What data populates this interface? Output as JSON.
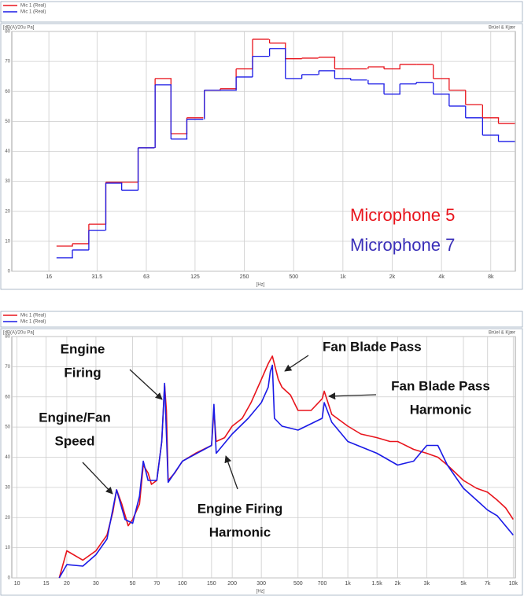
{
  "chart_data": [
    {
      "type": "step",
      "x_label": "[Hz]",
      "y_label": "[dB(A)/20u Pa]",
      "brand": "Brüel & Kjær",
      "log_x": true,
      "grid": true,
      "xlim": [
        9.5,
        11300
      ],
      "ylim": [
        0,
        80
      ],
      "xticks": [
        16,
        31.5,
        63,
        125,
        250,
        500,
        {
          "value": 1000,
          "label": "1k"
        },
        {
          "value": 2000,
          "label": "2k"
        },
        {
          "value": 4000,
          "label": "4k"
        },
        {
          "value": 8000,
          "label": "8k"
        }
      ],
      "yticks": [
        0,
        10,
        20,
        30,
        40,
        50,
        60,
        70,
        80
      ],
      "x": [
        20,
        25,
        31.5,
        40,
        50,
        63,
        80,
        100,
        125,
        160,
        200,
        250,
        315,
        400,
        500,
        630,
        800,
        1000,
        1250,
        1600,
        2000,
        2500,
        3150,
        4000,
        5000,
        6300,
        8000,
        10000
      ],
      "series": [
        {
          "name": "Mic 1 (Real)",
          "color": "#e8141c",
          "values": [
            8.4,
            9.2,
            15.7,
            29.7,
            29.7,
            41.2,
            64.3,
            45.9,
            51.2,
            60.4,
            60.9,
            67.5,
            77.4,
            76.1,
            70.9,
            71.1,
            71.4,
            67.5,
            67.5,
            68.2,
            67.5,
            69.0,
            69.0,
            64.3,
            60.4,
            55.6,
            51.2,
            49.3
          ]
        },
        {
          "name": "Mic 1 (Real)",
          "color": "#1a1ae6",
          "values": [
            4.5,
            7.1,
            13.6,
            29.4,
            27.0,
            41.2,
            62.2,
            44.1,
            50.7,
            60.4,
            60.4,
            64.8,
            71.7,
            74.3,
            64.3,
            65.6,
            66.9,
            64.3,
            63.8,
            62.5,
            59.1,
            62.5,
            63.0,
            59.1,
            55.1,
            51.2,
            45.4,
            43.3
          ]
        }
      ],
      "annotations": [
        {
          "text": "Microphone 5",
          "color": "#e8141c"
        },
        {
          "text": "Microphone 7",
          "color": "#3a2fb8"
        }
      ]
    },
    {
      "type": "line",
      "x_label": "[Hz]",
      "y_label": "[dB(A)/20u Pa]",
      "brand": "Brüel & Kjær",
      "log_x": true,
      "grid": true,
      "xlim": [
        9.3,
        10300
      ],
      "ylim": [
        0,
        80
      ],
      "xticks": [
        10,
        15,
        20,
        30,
        50,
        70,
        100,
        150,
        200,
        300,
        500,
        700,
        {
          "value": 1000,
          "label": "1k"
        },
        {
          "value": 1500,
          "label": "1.5k"
        },
        {
          "value": 2000,
          "label": "2k"
        },
        {
          "value": 3000,
          "label": "3k"
        },
        {
          "value": 5000,
          "label": "5k"
        },
        {
          "value": 7000,
          "label": "7k"
        },
        {
          "value": 10000,
          "label": "10k"
        }
      ],
      "yticks": [
        0,
        10,
        20,
        30,
        40,
        50,
        60,
        70,
        80
      ],
      "series": [
        {
          "name": "Mic 1 (Real)",
          "color": "#e8141c",
          "x": [
            18,
            20,
            25,
            30,
            35,
            38,
            40,
            43,
            47,
            50,
            55,
            58,
            62,
            65,
            70,
            75,
            78,
            80,
            82,
            90,
            100,
            120,
            150,
            155,
            160,
            180,
            200,
            230,
            260,
            300,
            330,
            350,
            380,
            400,
            450,
            500,
            600,
            700,
            720,
            800,
            1000,
            1200,
            1500,
            1800,
            2000,
            2500,
            3000,
            3500,
            4000,
            5000,
            6000,
            7000,
            8000,
            9000,
            10000
          ],
          "values": [
            0,
            9.0,
            5.9,
            9.0,
            14.2,
            21.9,
            29.2,
            24.5,
            17.3,
            19.4,
            24.5,
            37.4,
            34.8,
            31.0,
            32.3,
            45.2,
            64.0,
            55.5,
            32.3,
            34.8,
            38.7,
            41.3,
            43.9,
            55.5,
            45.2,
            46.5,
            50.3,
            52.9,
            58.1,
            65.8,
            71.0,
            73.5,
            65.8,
            63.2,
            60.6,
            55.5,
            55.5,
            59.4,
            61.9,
            54.2,
            50.3,
            47.7,
            46.5,
            45.2,
            45.2,
            42.6,
            41.3,
            40.0,
            37.4,
            32.3,
            29.7,
            28.4,
            25.8,
            23.2,
            19.4
          ]
        },
        {
          "name": "Mic 1 (Real)",
          "color": "#1a1ae6",
          "x": [
            18,
            20,
            25,
            30,
            35,
            40,
            45,
            50,
            55,
            58,
            62,
            70,
            75,
            78,
            82,
            100,
            150,
            155,
            160,
            200,
            250,
            300,
            330,
            340,
            350,
            360,
            400,
            500,
            700,
            720,
            800,
            1000,
            1500,
            2000,
            2500,
            3000,
            3500,
            4000,
            5000,
            6000,
            7000,
            8000,
            10000
          ],
          "values": [
            0,
            4.4,
            3.9,
            7.7,
            12.9,
            29.2,
            19.4,
            18.1,
            27.1,
            38.7,
            32.3,
            32.3,
            45.2,
            64.5,
            31.7,
            38.7,
            43.9,
            57.5,
            41.3,
            47.7,
            52.9,
            58.1,
            63.2,
            68.4,
            70.5,
            52.9,
            50.3,
            49.0,
            52.9,
            58.1,
            51.6,
            45.2,
            41.3,
            37.4,
            38.7,
            43.9,
            43.9,
            37.4,
            29.7,
            25.8,
            22.5,
            20.6,
            14.2
          ]
        }
      ],
      "annotations": [
        {
          "lines": [
            "Engine",
            "Firing"
          ]
        },
        {
          "lines": [
            "Engine/Fan",
            "Speed"
          ]
        },
        {
          "lines": [
            "Fan Blade Pass"
          ]
        },
        {
          "lines": [
            "Fan Blade Pass",
            "Harmonic"
          ]
        },
        {
          "lines": [
            "Engine Firing",
            "Harmonic"
          ]
        }
      ]
    }
  ]
}
